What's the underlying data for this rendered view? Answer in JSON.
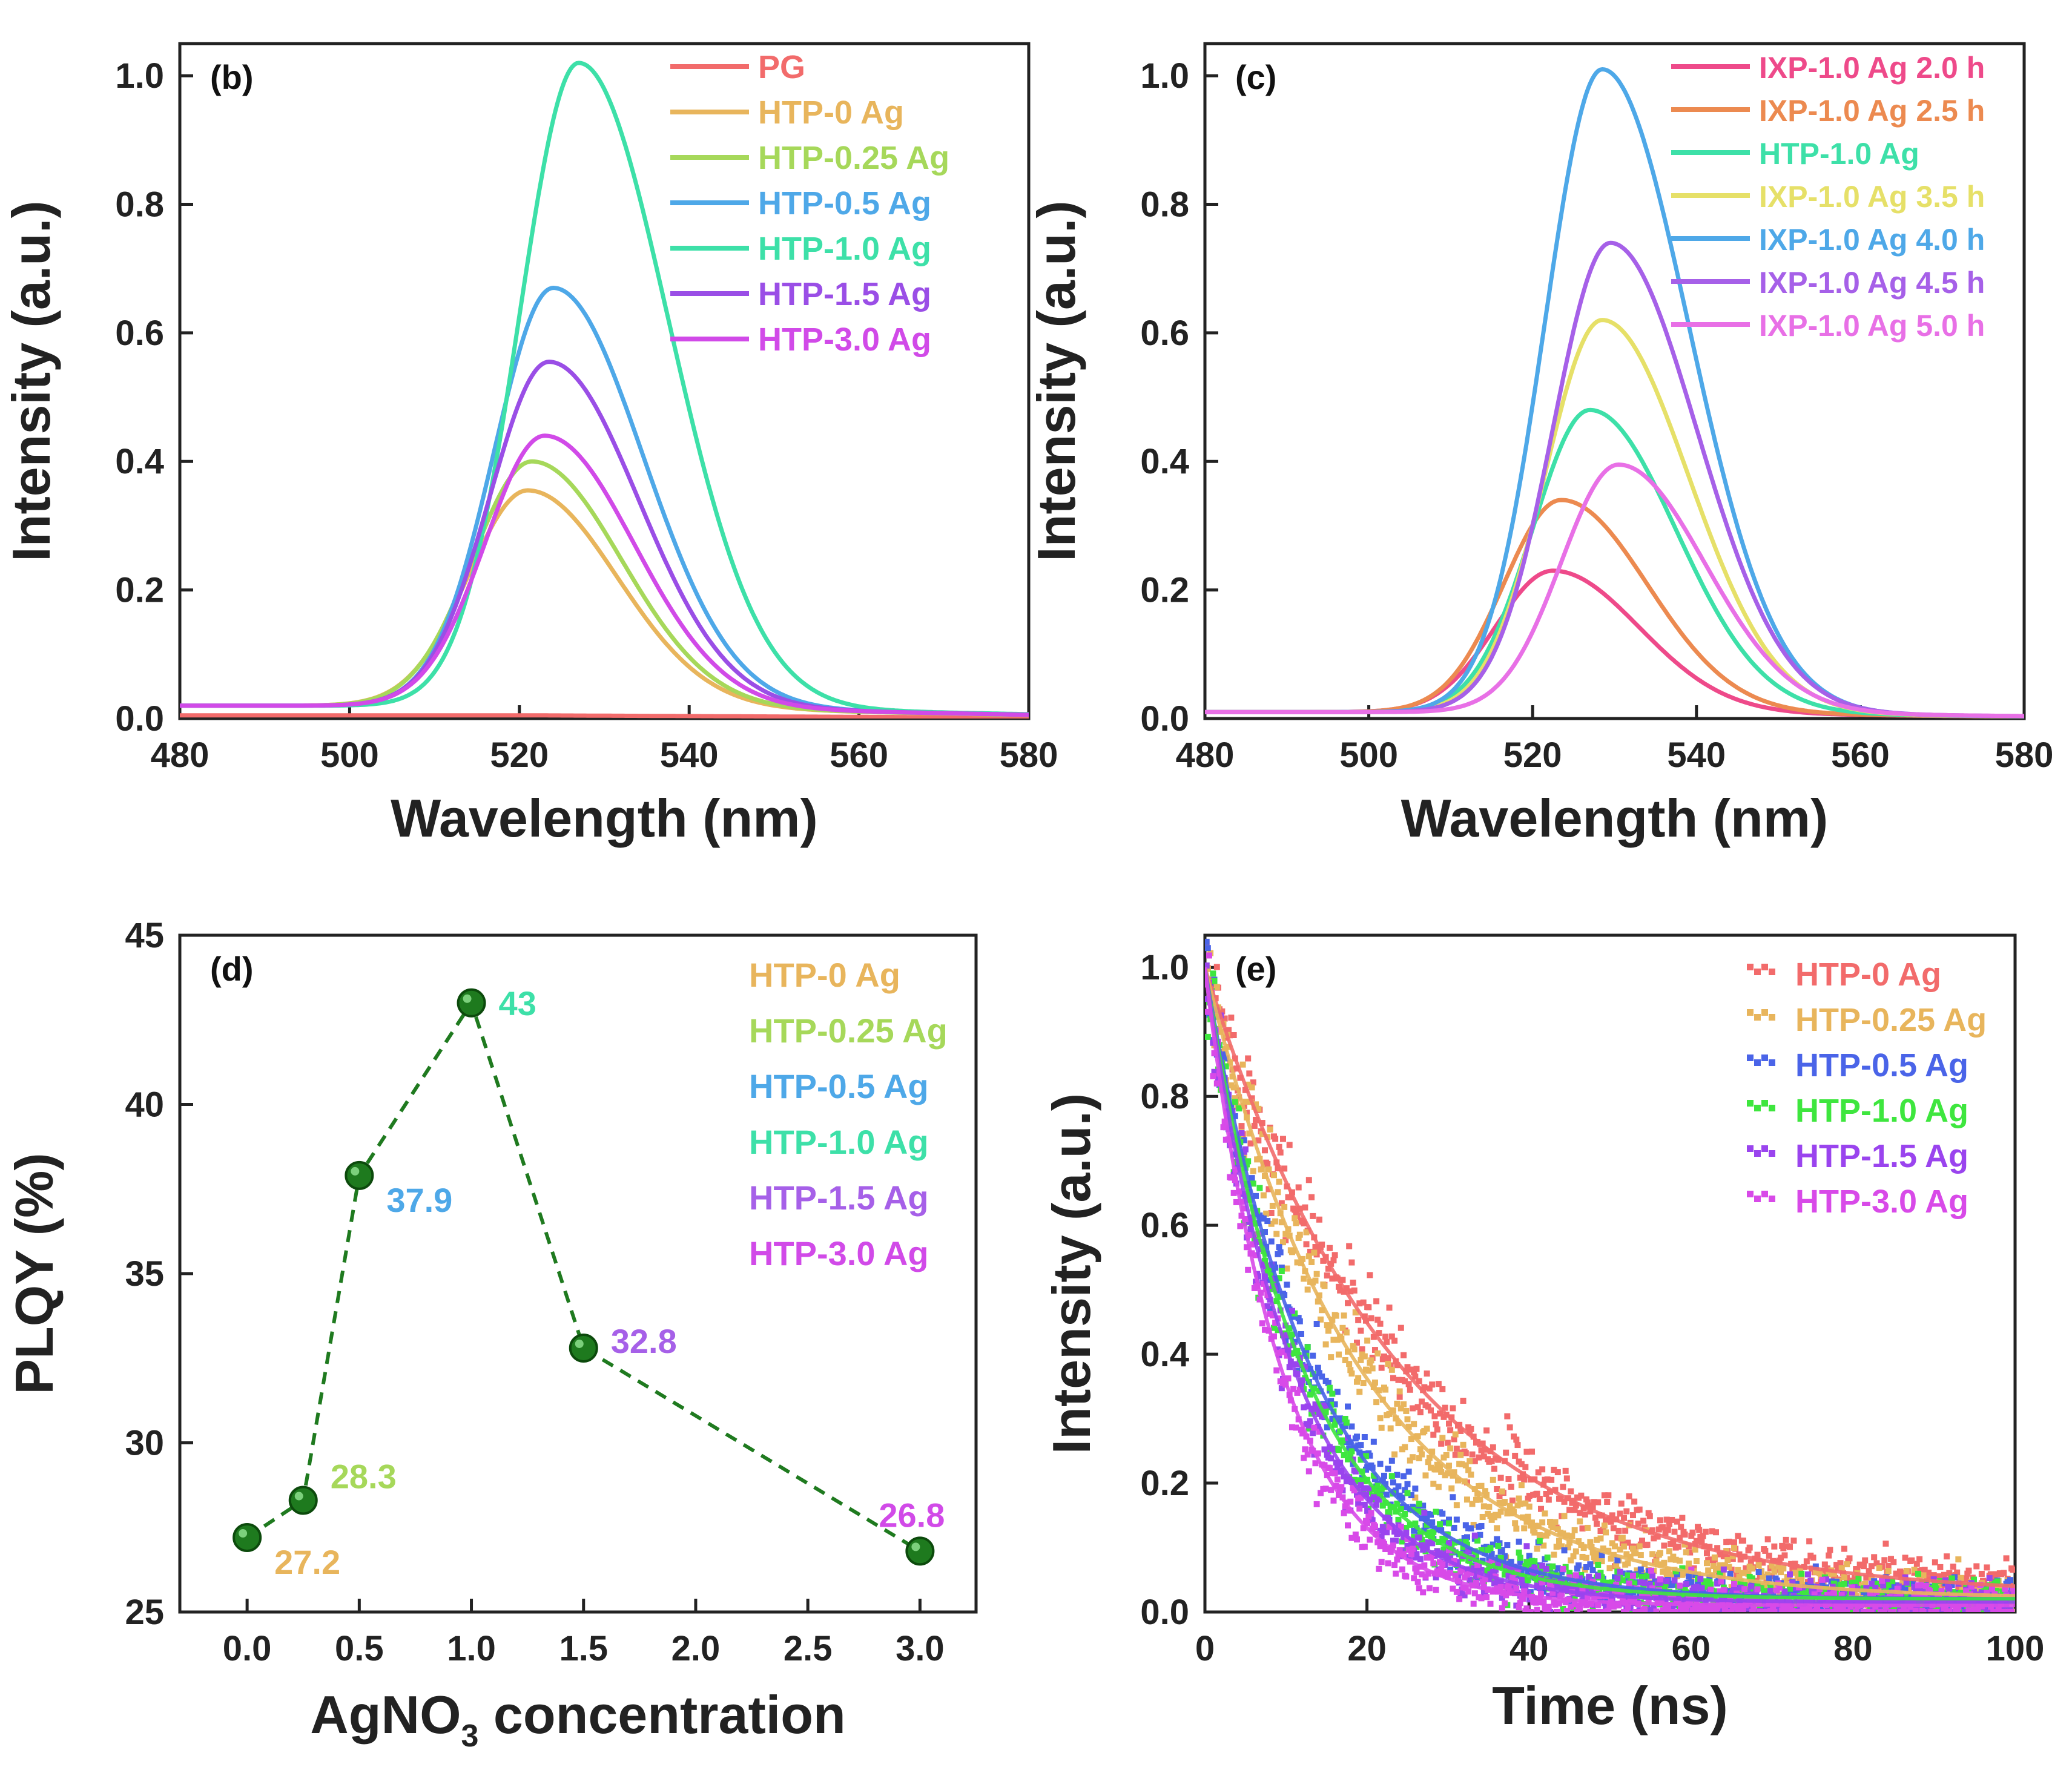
{
  "chart_data": [
    {
      "panel": "(b)",
      "type": "line",
      "xlabel": "Wavelength (nm)",
      "ylabel": "Intensity (a.u.)",
      "xlim": [
        480,
        580
      ],
      "ylim": [
        0,
        1.05
      ],
      "xticks": [
        480,
        500,
        520,
        540,
        560,
        580
      ],
      "yticks": [
        0.0,
        0.2,
        0.4,
        0.6,
        0.8,
        1.0
      ],
      "legend_position": "top-right",
      "series": [
        {
          "name": "PG",
          "color": "#f26b6b",
          "peak": 0.0,
          "center": 521,
          "base": 0.005
        },
        {
          "name": "HTP-0 Ag",
          "color": "#e8b55c",
          "peak": 0.335,
          "center": 521,
          "base": 0.02
        },
        {
          "name": "HTP-0.25 Ag",
          "color": "#a6d85a",
          "peak": 0.38,
          "center": 521.5,
          "base": 0.02
        },
        {
          "name": "HTP-0.5 Ag",
          "color": "#4ea8e8",
          "peak": 0.65,
          "center": 524,
          "base": 0.02
        },
        {
          "name": "HTP-1.0 Ag",
          "color": "#3de0a8",
          "peak": 1.0,
          "center": 527,
          "base": 0.02
        },
        {
          "name": "HTP-1.5 Ag",
          "color": "#9a4ee6",
          "peak": 0.535,
          "center": 523.5,
          "base": 0.02
        },
        {
          "name": "HTP-3.0 Ag",
          "color": "#d14ae8",
          "peak": 0.42,
          "center": 523,
          "base": 0.02
        }
      ]
    },
    {
      "panel": "(c)",
      "type": "line",
      "xlabel": "Wavelength (nm)",
      "ylabel": "Intensity (a.u.)",
      "xlim": [
        480,
        580
      ],
      "ylim": [
        0,
        1.05
      ],
      "xticks": [
        480,
        500,
        520,
        540,
        560,
        580
      ],
      "yticks": [
        0.0,
        0.2,
        0.4,
        0.6,
        0.8,
        1.0
      ],
      "legend_position": "top-right",
      "series": [
        {
          "name": "IXP-1.0 Ag 2.0 h",
          "color": "#ee4a8a",
          "peak": 0.22,
          "center": 522.5,
          "base": 0.01
        },
        {
          "name": "IXP-1.0 Ag 2.5 h",
          "color": "#ec8a50",
          "peak": 0.33,
          "center": 523.5,
          "base": 0.01
        },
        {
          "name": "HTP-1.0 Ag",
          "color": "#3de0a8",
          "peak": 0.47,
          "center": 527,
          "base": 0.01
        },
        {
          "name": "IXP-1.0 Ag 3.5 h",
          "color": "#e6e068",
          "peak": 0.61,
          "center": 528.5,
          "base": 0.01
        },
        {
          "name": "IXP-1.0 Ag 4.0 h",
          "color": "#4ea8e8",
          "peak": 1.0,
          "center": 528.5,
          "base": 0.01
        },
        {
          "name": "IXP-1.0 Ag 4.5 h",
          "color": "#a660e8",
          "peak": 0.73,
          "center": 529.5,
          "base": 0.01
        },
        {
          "name": "IXP-1.0 Ag 5.0 h",
          "color": "#e870e6",
          "peak": 0.385,
          "center": 530.5,
          "base": 0.01
        }
      ]
    },
    {
      "panel": "(d)",
      "type": "scatter",
      "xlabel_main": "AgNO",
      "xlabel_sub": "3",
      "xlabel_tail": " concentration",
      "ylabel": "PLQY (%)",
      "xlim": [
        -0.3,
        3.25
      ],
      "ylim": [
        25,
        45
      ],
      "xticks": [
        "0.0",
        "0.5",
        "1.0",
        "1.5",
        "2.0",
        "2.5",
        "3.0"
      ],
      "yticks": [
        25,
        30,
        35,
        40,
        45
      ],
      "line_color": "#1f7a1f",
      "points": [
        {
          "x": 0.0,
          "y": 27.2,
          "label": "27.2",
          "color": "#e8b55c",
          "dx": 1,
          "dy": 1
        },
        {
          "x": 0.25,
          "y": 28.3,
          "label": "28.3",
          "color": "#a6d85a",
          "dx": 1,
          "dy": -1
        },
        {
          "x": 0.5,
          "y": 37.9,
          "label": "37.9",
          "color": "#4ea8e8",
          "dx": 1,
          "dy": 1
        },
        {
          "x": 1.0,
          "y": 43.0,
          "label": "43",
          "color": "#3de0a8",
          "dx": 1,
          "dy": 0
        },
        {
          "x": 1.5,
          "y": 32.8,
          "label": "32.8",
          "color": "#a660e8",
          "dx": 1,
          "dy": -0.3
        },
        {
          "x": 3.0,
          "y": 26.8,
          "label": "26.8",
          "color": "#d14ae8",
          "dx": -0.3,
          "dy": -1.5
        }
      ],
      "legend_position": "top-right",
      "legend": [
        {
          "name": "HTP-0 Ag",
          "color": "#e8b55c"
        },
        {
          "name": "HTP-0.25 Ag",
          "color": "#a6d85a"
        },
        {
          "name": "HTP-0.5 Ag",
          "color": "#4ea8e8"
        },
        {
          "name": "HTP-1.0 Ag",
          "color": "#3de0a8"
        },
        {
          "name": "HTP-1.5 Ag",
          "color": "#a660e8"
        },
        {
          "name": "HTP-3.0 Ag",
          "color": "#d14ae8"
        }
      ]
    },
    {
      "panel": "(e)",
      "type": "scatter",
      "xlabel": "Time (ns)",
      "ylabel": "Intensity (a.u.)",
      "xlim": [
        0,
        100
      ],
      "ylim": [
        0,
        1.05
      ],
      "xticks": [
        0,
        20,
        40,
        60,
        80,
        100
      ],
      "yticks": [
        0.0,
        0.2,
        0.4,
        0.6,
        0.8,
        1.0
      ],
      "legend_position": "top-right",
      "series": [
        {
          "name": "HTP-0 Ag",
          "color": "#f26b6b",
          "fit_color": "#f26b6b",
          "tau": 24,
          "floor": 0.025
        },
        {
          "name": "HTP-0.25 Ag",
          "color": "#e8b55c",
          "fit_color": "#e8b55c",
          "tau": 19,
          "floor": 0.02
        },
        {
          "name": "HTP-0.5 Ag",
          "color": "#4a64e8",
          "fit_color": "#4a64e8",
          "tau": 13,
          "floor": 0.02
        },
        {
          "name": "HTP-1.0 Ag",
          "color": "#3ee63e",
          "fit_color": "#3ee63e",
          "tau": 12,
          "floor": 0.02
        },
        {
          "name": "HTP-1.5 Ag",
          "color": "#9a44ee",
          "fit_color": "#9a44ee",
          "tau": 11,
          "floor": 0.015
        },
        {
          "name": "HTP-3.0 Ag",
          "color": "#d84ae8",
          "fit_color": "#d84ae8",
          "tau": 9.5,
          "floor": 0.01
        }
      ]
    }
  ]
}
